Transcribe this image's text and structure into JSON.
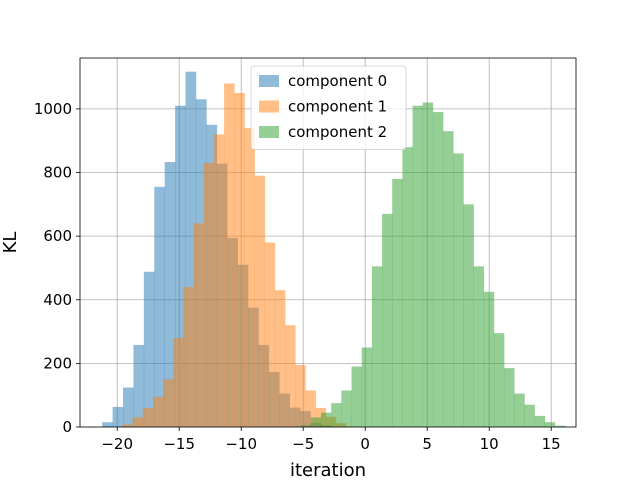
{
  "chart_data": {
    "type": "histogram",
    "xlabel": "iteration",
    "ylabel": "KL",
    "xlim": [
      -23,
      17
    ],
    "ylim": [
      0,
      1160
    ],
    "xticks": [
      -20,
      -15,
      -10,
      -5,
      0,
      5,
      10,
      15
    ],
    "yticks": [
      0,
      200,
      400,
      600,
      800,
      1000
    ],
    "grid": true,
    "legend_position": "upper-center",
    "series": [
      {
        "name": "component 0",
        "color": "#1f77b4",
        "bin_width": 0.84,
        "bins": [
          {
            "x0": -21.21,
            "count": 15
          },
          {
            "x0": -20.37,
            "count": 63
          },
          {
            "x0": -19.53,
            "count": 124
          },
          {
            "x0": -18.69,
            "count": 258
          },
          {
            "x0": -17.85,
            "count": 488
          },
          {
            "x0": -17.01,
            "count": 755
          },
          {
            "x0": -16.17,
            "count": 833
          },
          {
            "x0": -15.33,
            "count": 1010
          },
          {
            "x0": -14.49,
            "count": 1117
          },
          {
            "x0": -13.65,
            "count": 1030
          },
          {
            "x0": -12.81,
            "count": 950
          },
          {
            "x0": -11.97,
            "count": 828
          },
          {
            "x0": -11.13,
            "count": 594
          },
          {
            "x0": -10.29,
            "count": 510
          },
          {
            "x0": -9.45,
            "count": 375
          },
          {
            "x0": -8.61,
            "count": 258
          },
          {
            "x0": -7.77,
            "count": 173
          },
          {
            "x0": -6.93,
            "count": 105
          },
          {
            "x0": -6.09,
            "count": 61
          },
          {
            "x0": -5.25,
            "count": 50
          },
          {
            "x0": -4.41,
            "count": 13
          },
          {
            "x0": -3.57,
            "count": 5
          }
        ]
      },
      {
        "name": "component 1",
        "color": "#ff7f0e",
        "bin_width": 0.82,
        "bins": [
          {
            "x0": -19.58,
            "count": 8
          },
          {
            "x0": -18.76,
            "count": 30
          },
          {
            "x0": -17.94,
            "count": 60
          },
          {
            "x0": -17.12,
            "count": 95
          },
          {
            "x0": -16.3,
            "count": 150
          },
          {
            "x0": -15.48,
            "count": 280
          },
          {
            "x0": -14.66,
            "count": 440
          },
          {
            "x0": -13.84,
            "count": 640
          },
          {
            "x0": -13.02,
            "count": 830
          },
          {
            "x0": -12.2,
            "count": 920
          },
          {
            "x0": -11.38,
            "count": 1080
          },
          {
            "x0": -10.56,
            "count": 1050
          },
          {
            "x0": -9.74,
            "count": 940
          },
          {
            "x0": -8.92,
            "count": 790
          },
          {
            "x0": -8.1,
            "count": 580
          },
          {
            "x0": -7.28,
            "count": 430
          },
          {
            "x0": -6.46,
            "count": 320
          },
          {
            "x0": -5.64,
            "count": 195
          },
          {
            "x0": -4.82,
            "count": 115
          },
          {
            "x0": -4.0,
            "count": 60
          },
          {
            "x0": -3.18,
            "count": 32
          },
          {
            "x0": -2.36,
            "count": 12
          }
        ]
      },
      {
        "name": "component 2",
        "color": "#2ca02c",
        "bin_width": 0.82,
        "bins": [
          {
            "x0": -5.2,
            "count": 5
          },
          {
            "x0": -4.38,
            "count": 30
          },
          {
            "x0": -3.56,
            "count": 45
          },
          {
            "x0": -2.74,
            "count": 75
          },
          {
            "x0": -1.92,
            "count": 115
          },
          {
            "x0": -1.1,
            "count": 190
          },
          {
            "x0": -0.28,
            "count": 250
          },
          {
            "x0": 0.54,
            "count": 505
          },
          {
            "x0": 1.36,
            "count": 670
          },
          {
            "x0": 2.18,
            "count": 780
          },
          {
            "x0": 3.0,
            "count": 880
          },
          {
            "x0": 3.82,
            "count": 1010
          },
          {
            "x0": 4.64,
            "count": 1020
          },
          {
            "x0": 5.46,
            "count": 990
          },
          {
            "x0": 6.28,
            "count": 930
          },
          {
            "x0": 7.1,
            "count": 860
          },
          {
            "x0": 7.92,
            "count": 700
          },
          {
            "x0": 8.74,
            "count": 505
          },
          {
            "x0": 9.56,
            "count": 425
          },
          {
            "x0": 10.38,
            "count": 295
          },
          {
            "x0": 11.2,
            "count": 185
          },
          {
            "x0": 12.02,
            "count": 105
          },
          {
            "x0": 12.84,
            "count": 70
          },
          {
            "x0": 13.66,
            "count": 35
          },
          {
            "x0": 14.48,
            "count": 15
          },
          {
            "x0": 15.3,
            "count": 4
          }
        ]
      }
    ]
  }
}
